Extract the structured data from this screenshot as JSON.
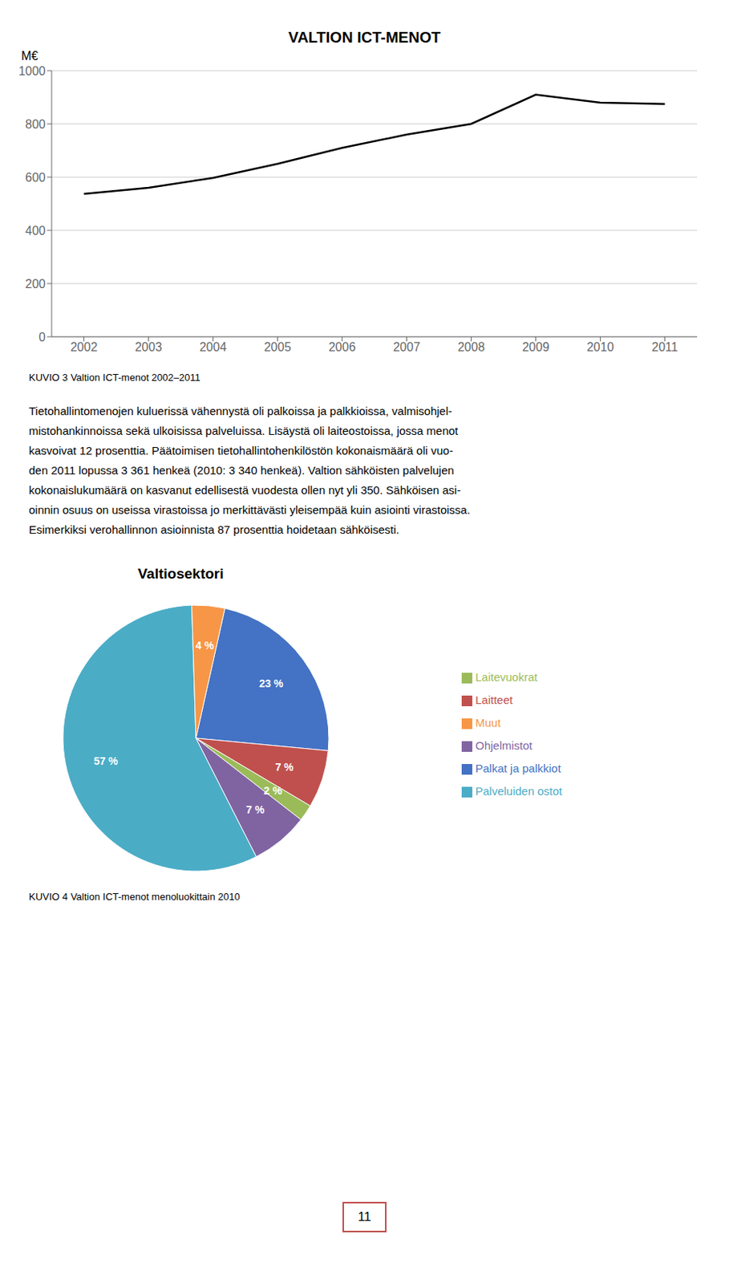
{
  "chart_data": [
    {
      "type": "line",
      "title": "VALTION ICT-MENOT",
      "ylabel": "M€",
      "x": [
        2002,
        2003,
        2004,
        2005,
        2006,
        2007,
        2008,
        2009,
        2010,
        2011
      ],
      "values": [
        537,
        560,
        597,
        650,
        710,
        760,
        800,
        910,
        880,
        875
      ],
      "color": "#000000",
      "xlim": [
        2001.5,
        2011.5
      ],
      "xticks": [
        2002,
        2003,
        2004,
        2005,
        2006,
        2007,
        2008,
        2009,
        2010,
        2011
      ],
      "ylim": [
        0,
        1000
      ],
      "yticks": [
        0,
        200,
        400,
        600,
        800,
        1000
      ],
      "grid": true,
      "annotations": [
        "KUVIO 3 Valtion ICT-menot 2002–2011",
        "Tietohallintomenojen kuluerissä vähennystä oli palkoissa ja palkkioissa, valmisohjel-",
        "mistohankinnoissa sekä ulkoisissa palveluissa. Lisäystä oli laiteostoissa, jossa menot",
        "kasvoivat 12 prosenttia. Päätoimisen tietohallintohenkilöstön kokonaismäärä oli vuo-",
        "den 2011 lopussa 3 361 henkeä (2010: 3 340 henkeä). Valtion sähköisten palvelujen",
        "kokonaislukumäärä on kasvanut edellisestä vuodesta ollen nyt yli 350. Sähköisen asi-",
        "oinnin osuus on useissa virastoissa jo merkittävästi yleisempää kuin asiointi virastoissa.",
        "Esimerkiksi verohallinnon asioinnista 87 prosenttia hoidetaan sähköisesti."
      ]
    },
    {
      "type": "pie",
      "title": "Valtiosektori",
      "categories": [
        "Palkat ja palkkiot",
        "Laitteet",
        "Laitevuokrat",
        "Ohjelmistot",
        "Palveluiden ostot",
        "Muut"
      ],
      "values": [
        23,
        7,
        2,
        7,
        57,
        4
      ],
      "value_labels": [
        "23 %",
        "7 %",
        "2 %",
        "7 %",
        "57 %",
        "4 %"
      ],
      "colors": [
        "#4472C4",
        "#C0504D",
        "#9BBB59",
        "#8064A2",
        "#4BACC6",
        "#F79646"
      ],
      "data_labels": true,
      "legend": "right",
      "annotations": [
        "KUVIO 4 Valtion ICT-menot menoluokittain 2010",
        "11"
      ]
    }
  ]
}
